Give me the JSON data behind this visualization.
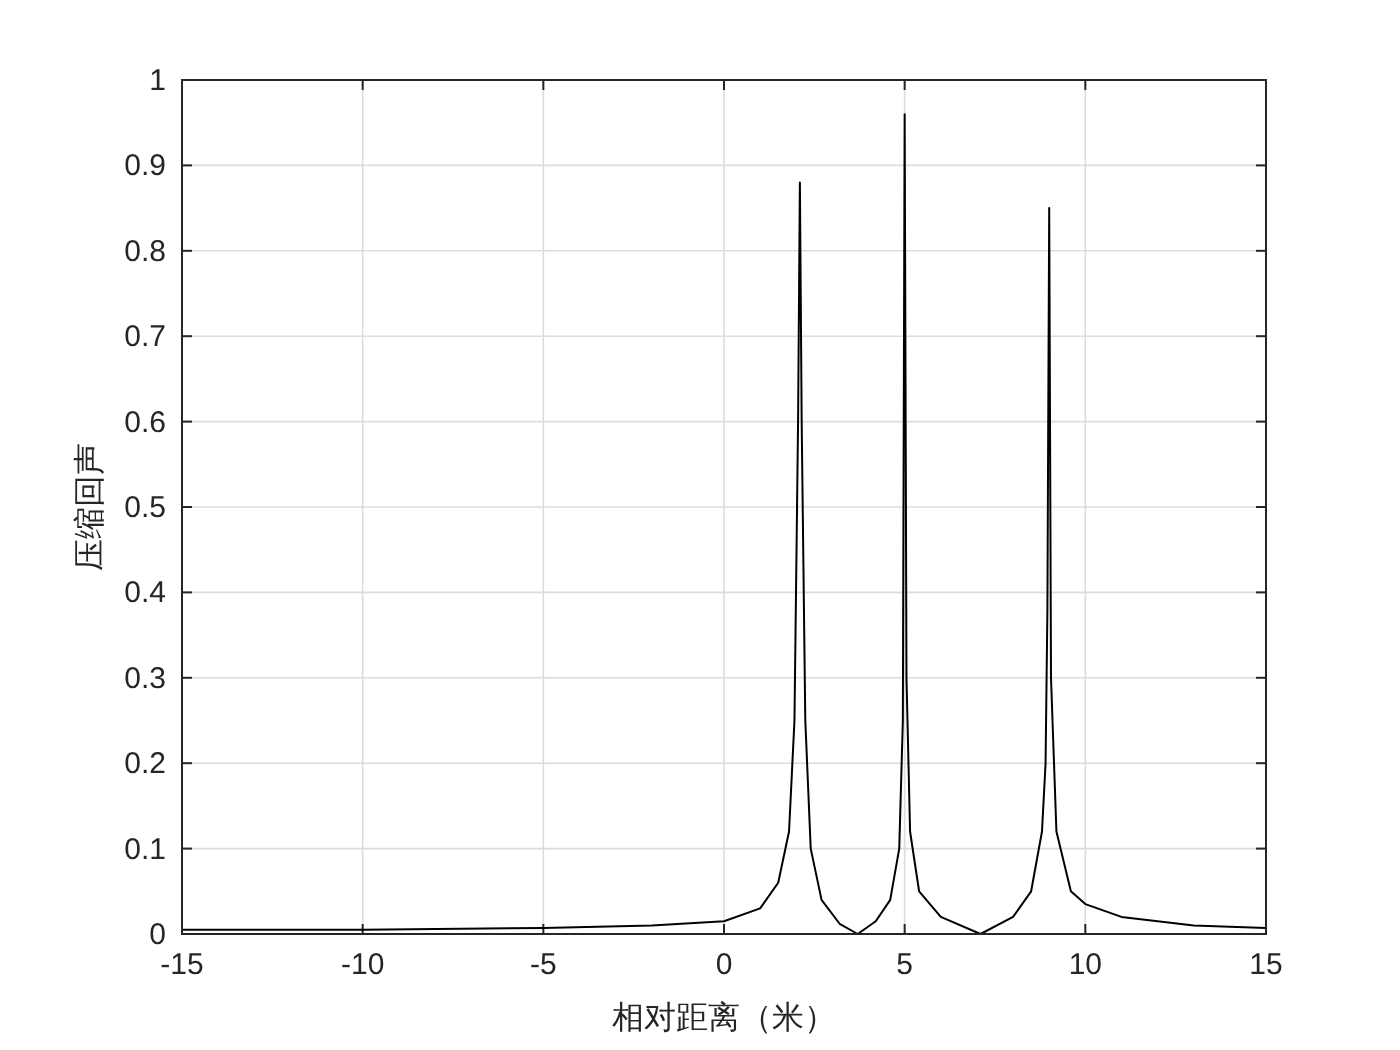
{
  "chart_data": {
    "type": "line",
    "xlabel": "相对距离（米）",
    "ylabel": "压缩回声",
    "xlim": [
      -15,
      15
    ],
    "ylim": [
      0,
      1
    ],
    "xticks": [
      -15,
      -10,
      -5,
      0,
      5,
      10,
      15
    ],
    "yticks": [
      0,
      0.1,
      0.2,
      0.3,
      0.4,
      0.5,
      0.6,
      0.7,
      0.8,
      0.9,
      1
    ],
    "grid": true,
    "marker": "none",
    "line_style": "solid",
    "series": [
      {
        "color": "#000000",
        "x": [
          -15,
          -10,
          -5,
          -2,
          0,
          1,
          1.5,
          1.8,
          1.95,
          2.05,
          2.1,
          2.15,
          2.25,
          2.4,
          2.7,
          3.2,
          3.7,
          4.2,
          4.6,
          4.85,
          4.95,
          5.0,
          5.05,
          5.15,
          5.4,
          6,
          7.1,
          8,
          8.5,
          8.8,
          8.9,
          8.95,
          9.0,
          9.05,
          9.2,
          9.6,
          10,
          11,
          13,
          15
        ],
        "values": [
          0.005,
          0.005,
          0.007,
          0.01,
          0.015,
          0.03,
          0.06,
          0.12,
          0.25,
          0.6,
          0.88,
          0.6,
          0.25,
          0.1,
          0.04,
          0.012,
          0,
          0.015,
          0.04,
          0.1,
          0.25,
          0.96,
          0.3,
          0.12,
          0.05,
          0.02,
          0,
          0.02,
          0.05,
          0.12,
          0.2,
          0.38,
          0.85,
          0.3,
          0.12,
          0.05,
          0.035,
          0.02,
          0.01,
          0.007
        ]
      }
    ]
  }
}
